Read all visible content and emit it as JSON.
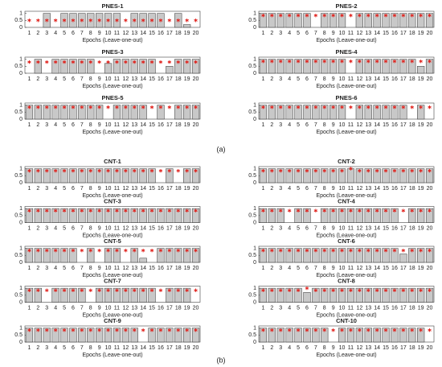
{
  "panel_labels": [
    "(a)",
    "(b)"
  ],
  "chart_data": [
    {
      "type": "bar",
      "title": "PNES-1",
      "xlabel": "Epochs (Leave-one-out)",
      "x": [
        1,
        2,
        3,
        4,
        5,
        6,
        7,
        8,
        9,
        10,
        11,
        12,
        13,
        14,
        15,
        16,
        17,
        18,
        19,
        20
      ],
      "values": [
        0,
        0,
        1,
        0,
        1,
        1,
        1,
        1,
        1,
        1,
        1,
        0,
        1,
        1,
        1,
        1,
        0,
        1,
        0.2,
        0
      ],
      "markers": [
        0.5,
        0.5,
        0.5,
        0.5,
        0.5,
        0.5,
        0.5,
        0.5,
        0.5,
        0.5,
        0.5,
        0.5,
        0.5,
        0.5,
        0.5,
        0.5,
        0.5,
        0.5,
        0.5,
        0.5
      ],
      "ylim": [
        0,
        1.15
      ],
      "yticks": [
        0,
        0.5,
        1
      ]
    },
    {
      "type": "bar",
      "title": "PNES-2",
      "xlabel": "Epochs (Leave-one-out)",
      "x": [
        1,
        2,
        3,
        4,
        5,
        6,
        7,
        8,
        9,
        10,
        11,
        12,
        13,
        14,
        15,
        16,
        17,
        18,
        19,
        20
      ],
      "values": [
        1,
        1,
        1,
        1,
        1,
        1,
        0,
        1,
        1,
        1,
        0,
        1,
        1,
        1,
        1,
        1,
        1,
        1,
        1,
        1
      ],
      "markers": [
        0.85,
        0.85,
        0.85,
        0.85,
        0.85,
        0.85,
        0.85,
        0.85,
        0.85,
        0.85,
        0.85,
        0.85,
        0.85,
        0.85,
        0.85,
        0.85,
        0.85,
        0.85,
        0.85,
        0.85
      ],
      "ylim": [
        0,
        1.15
      ],
      "yticks": [
        0,
        0.5,
        1
      ]
    },
    {
      "type": "bar",
      "title": "PNES-3",
      "xlabel": "Epochs (Leave-one-out)",
      "x": [
        1,
        2,
        3,
        4,
        5,
        6,
        7,
        8,
        9,
        10,
        11,
        12,
        13,
        14,
        15,
        16,
        17,
        18,
        19,
        20
      ],
      "values": [
        0,
        1,
        0,
        1,
        1,
        1,
        1,
        1,
        0,
        0.7,
        1,
        1,
        1,
        1,
        1,
        0,
        0.5,
        1,
        1,
        1
      ],
      "markers": [
        0.8,
        0.8,
        0.8,
        0.8,
        0.8,
        0.8,
        0.8,
        0.8,
        0.8,
        0.8,
        0.8,
        0.8,
        0.8,
        0.8,
        0.8,
        0.8,
        0.8,
        0.8,
        0.8,
        0.8
      ],
      "ylim": [
        0,
        1.15
      ],
      "yticks": [
        0,
        0.5,
        1
      ]
    },
    {
      "type": "bar",
      "title": "PNES-4",
      "xlabel": "Epochs (Leave-one-out)",
      "x": [
        1,
        2,
        3,
        4,
        5,
        6,
        7,
        8,
        9,
        10,
        11,
        12,
        13,
        14,
        15,
        16,
        17,
        18,
        19,
        20
      ],
      "values": [
        1,
        1,
        1,
        1,
        1,
        1,
        1,
        1,
        1,
        1,
        0,
        1,
        1,
        1,
        1,
        1,
        1,
        1,
        0.5,
        1
      ],
      "markers": [
        0.85,
        0.85,
        0.85,
        0.85,
        0.85,
        0.85,
        0.85,
        0.85,
        0.85,
        0.85,
        0.85,
        0.85,
        0.85,
        0.85,
        0.85,
        0.85,
        0.85,
        0.85,
        0.85,
        0.85
      ],
      "ylim": [
        0,
        1.15
      ],
      "yticks": [
        0,
        0.5,
        1
      ]
    },
    {
      "type": "bar",
      "title": "PNES-5",
      "xlabel": "Epochs (Leave-one-out)",
      "x": [
        1,
        2,
        3,
        4,
        5,
        6,
        7,
        8,
        9,
        10,
        11,
        12,
        13,
        14,
        15,
        16,
        17,
        18,
        19,
        20
      ],
      "values": [
        1,
        1,
        1,
        1,
        1,
        1,
        1,
        1,
        1,
        0,
        1,
        1,
        1,
        1,
        0,
        1,
        0,
        1,
        1,
        1
      ],
      "markers": [
        0.85,
        0.85,
        0.85,
        0.85,
        0.85,
        0.85,
        0.85,
        0.85,
        0.85,
        0.85,
        0.85,
        0.85,
        0.85,
        0.85,
        0.85,
        0.85,
        0.85,
        0.85,
        0.85,
        0.85
      ],
      "ylim": [
        0,
        1.15
      ],
      "yticks": [
        0,
        0.5,
        1
      ]
    },
    {
      "type": "bar",
      "title": "PNES-6",
      "xlabel": "Epochs (Leave-one-out)",
      "x": [
        1,
        2,
        3,
        4,
        5,
        6,
        7,
        8,
        9,
        10,
        11,
        12,
        13,
        14,
        15,
        16,
        17,
        18,
        19,
        20
      ],
      "values": [
        1,
        1,
        1,
        1,
        1,
        1,
        1,
        1,
        1,
        1,
        0,
        1,
        1,
        1,
        1,
        1,
        1,
        0,
        1,
        0
      ],
      "markers": [
        0.85,
        0.85,
        0.85,
        0.85,
        0.85,
        0.85,
        0.85,
        0.85,
        0.85,
        0.85,
        0.85,
        0.85,
        0.85,
        0.85,
        0.85,
        0.85,
        0.85,
        0.85,
        0.85,
        0.85
      ],
      "ylim": [
        0,
        1.15
      ],
      "yticks": [
        0,
        0.5,
        1
      ]
    },
    {
      "type": "bar",
      "title": "CNT-1",
      "xlabel": "Epochs (Leave-one-out)",
      "x": [
        1,
        2,
        3,
        4,
        5,
        6,
        7,
        8,
        9,
        10,
        11,
        12,
        13,
        14,
        15,
        16,
        17,
        18,
        19,
        20
      ],
      "values": [
        1,
        1,
        1,
        1,
        1,
        1,
        1,
        1,
        1,
        1,
        1,
        1,
        1,
        1,
        1,
        0,
        1,
        0,
        1,
        1
      ],
      "markers": [
        0.85,
        0.85,
        0.85,
        0.85,
        0.85,
        0.85,
        0.85,
        0.85,
        0.85,
        0.85,
        0.85,
        0.85,
        0.85,
        0.85,
        0.85,
        0.85,
        0.85,
        0.85,
        0.85,
        0.85
      ],
      "ylim": [
        0,
        1.15
      ],
      "yticks": [
        0,
        0.5,
        1
      ]
    },
    {
      "type": "bar",
      "title": "CNT-2",
      "xlabel": "Epochs (Leave-one-out)",
      "x": [
        1,
        2,
        3,
        4,
        5,
        6,
        7,
        8,
        9,
        10,
        11,
        12,
        13,
        14,
        15,
        16,
        17,
        18,
        19,
        20
      ],
      "values": [
        1,
        1,
        1,
        1,
        1,
        1,
        1,
        1,
        1,
        1,
        1,
        1,
        1,
        1,
        1,
        1,
        1,
        1,
        1,
        1
      ],
      "markers": [
        0.85,
        0.85,
        0.85,
        0.85,
        0.85,
        0.85,
        0.85,
        0.85,
        0.85,
        0.85,
        1,
        0.85,
        0.85,
        0.85,
        0.85,
        0.85,
        0.85,
        0.85,
        0.85,
        0.85
      ],
      "ylim": [
        0,
        1.15
      ],
      "yticks": [
        0,
        0.5,
        1
      ]
    },
    {
      "type": "bar",
      "title": "CNT-3",
      "xlabel": "Epochs (Leave-one-out)",
      "x": [
        1,
        2,
        3,
        4,
        5,
        6,
        7,
        8,
        9,
        10,
        11,
        12,
        13,
        14,
        15,
        16,
        17,
        18,
        19,
        20
      ],
      "values": [
        1,
        1,
        1,
        1,
        1,
        1,
        1,
        1,
        1,
        1,
        1,
        1,
        1,
        1,
        1,
        1,
        1,
        1,
        1,
        1
      ],
      "markers": [
        0.85,
        0.85,
        0.85,
        0.85,
        0.85,
        0.85,
        0.85,
        0.85,
        0.85,
        0.85,
        0.85,
        0.85,
        0.85,
        0.85,
        0.85,
        0.85,
        0.85,
        0.85,
        0.85,
        0.85
      ],
      "ylim": [
        0,
        1.15
      ],
      "yticks": [
        0,
        0.5,
        1
      ]
    },
    {
      "type": "bar",
      "title": "CNT-4",
      "xlabel": "Epochs (Leave-one-out)",
      "x": [
        1,
        2,
        3,
        4,
        5,
        6,
        7,
        8,
        9,
        10,
        11,
        12,
        13,
        14,
        15,
        16,
        17,
        18,
        19,
        20
      ],
      "values": [
        1,
        1,
        1,
        0,
        1,
        1,
        0,
        1,
        1,
        1,
        1,
        1,
        1,
        1,
        1,
        1,
        0,
        1,
        1,
        1
      ],
      "markers": [
        0.85,
        0.85,
        0.85,
        0.85,
        0.85,
        0.85,
        0.85,
        0.85,
        0.85,
        0.85,
        0.85,
        0.85,
        0.85,
        0.85,
        0.85,
        0.85,
        0.85,
        0.85,
        0.85,
        0.85
      ],
      "ylim": [
        0,
        1.15
      ],
      "yticks": [
        0,
        0.5,
        1
      ]
    },
    {
      "type": "bar",
      "title": "CNT-5",
      "xlabel": "Epochs (Leave-one-out)",
      "x": [
        1,
        2,
        3,
        4,
        5,
        6,
        7,
        8,
        9,
        10,
        11,
        12,
        13,
        14,
        15,
        16,
        17,
        18,
        19,
        20
      ],
      "values": [
        1,
        1,
        1,
        1,
        1,
        1,
        0,
        1,
        0,
        1,
        1,
        0,
        1,
        0.3,
        0,
        1,
        1,
        1,
        1,
        1
      ],
      "markers": [
        0.85,
        0.85,
        0.85,
        0.85,
        0.85,
        0.85,
        0.85,
        0.85,
        0.85,
        0.85,
        0.85,
        0.85,
        0.85,
        0.85,
        0.85,
        0.85,
        0.85,
        0.85,
        0.85,
        0.85
      ],
      "ylim": [
        0,
        1.15
      ],
      "yticks": [
        0,
        0.5,
        1
      ]
    },
    {
      "type": "bar",
      "title": "CNT-6",
      "xlabel": "Epochs (Leave-one-out)",
      "x": [
        1,
        2,
        3,
        4,
        5,
        6,
        7,
        8,
        9,
        10,
        11,
        12,
        13,
        14,
        15,
        16,
        17,
        18,
        19,
        20
      ],
      "values": [
        1,
        1,
        1,
        1,
        1,
        1,
        1,
        1,
        1,
        1,
        1,
        1,
        1,
        1,
        1,
        1,
        0.6,
        1,
        1,
        1
      ],
      "markers": [
        0.85,
        0.85,
        0.85,
        0.85,
        0.85,
        0.85,
        0.85,
        0.85,
        0.85,
        0.85,
        0.85,
        0.85,
        0.85,
        0.85,
        0.85,
        0.85,
        0.85,
        0.85,
        0.85,
        0.85
      ],
      "ylim": [
        0,
        1.15
      ],
      "yticks": [
        0,
        0.5,
        1
      ]
    },
    {
      "type": "bar",
      "title": "CNT-7",
      "xlabel": "Epochs (Leave-one-out)",
      "x": [
        1,
        2,
        3,
        4,
        5,
        6,
        7,
        8,
        9,
        10,
        11,
        12,
        13,
        14,
        15,
        16,
        17,
        18,
        19,
        20
      ],
      "values": [
        1,
        1,
        0,
        1,
        1,
        1,
        1,
        0,
        1,
        1,
        1,
        1,
        1,
        1,
        1,
        0,
        1,
        1,
        1,
        0
      ],
      "markers": [
        0.85,
        0.85,
        0.85,
        0.85,
        0.85,
        0.85,
        0.85,
        0.85,
        0.85,
        0.85,
        0.85,
        0.85,
        0.85,
        0.85,
        0.85,
        0.85,
        0.85,
        0.85,
        0.85,
        0.85
      ],
      "ylim": [
        0,
        1.15
      ],
      "yticks": [
        0,
        0.5,
        1
      ]
    },
    {
      "type": "bar",
      "title": "CNT-8",
      "xlabel": "Epochs (Leave-one-out)",
      "x": [
        1,
        2,
        3,
        4,
        5,
        6,
        7,
        8,
        9,
        10,
        11,
        12,
        13,
        14,
        15,
        16,
        17,
        18,
        19,
        20
      ],
      "values": [
        1,
        1,
        1,
        1,
        1,
        0.7,
        1,
        1,
        1,
        1,
        1,
        1,
        1,
        1,
        1,
        1,
        1,
        1,
        1,
        1
      ],
      "markers": [
        0.85,
        0.85,
        0.85,
        0.85,
        0.85,
        1,
        0.85,
        0.85,
        0.85,
        0.85,
        0.85,
        0.85,
        0.85,
        0.85,
        0.85,
        0.85,
        0.85,
        0.85,
        0.85,
        0.85
      ],
      "ylim": [
        0,
        1.15
      ],
      "yticks": [
        0,
        0.5,
        1
      ]
    },
    {
      "type": "bar",
      "title": "CNT-9",
      "xlabel": "Epochs (Leave-one-out)",
      "x": [
        1,
        2,
        3,
        4,
        5,
        6,
        7,
        8,
        9,
        10,
        11,
        12,
        13,
        14,
        15,
        16,
        17,
        18,
        19,
        20
      ],
      "values": [
        1,
        1,
        1,
        1,
        1,
        1,
        1,
        1,
        1,
        1,
        1,
        1,
        1,
        0,
        1,
        1,
        1,
        1,
        1,
        1
      ],
      "markers": [
        0.85,
        0.85,
        0.85,
        0.85,
        0.85,
        0.85,
        0.85,
        0.85,
        0.85,
        0.85,
        0.85,
        0.85,
        0.85,
        0.85,
        0.85,
        0.85,
        0.85,
        0.85,
        0.85,
        0.85
      ],
      "ylim": [
        0,
        1.15
      ],
      "yticks": [
        0,
        0.5,
        1
      ]
    },
    {
      "type": "bar",
      "title": "CNT-10",
      "xlabel": "Epochs (Leave-one-out)",
      "x": [
        1,
        2,
        3,
        4,
        5,
        6,
        7,
        8,
        9,
        10,
        11,
        12,
        13,
        14,
        15,
        16,
        17,
        18,
        19,
        20
      ],
      "values": [
        1,
        1,
        1,
        1,
        1,
        1,
        1,
        1,
        0,
        1,
        1,
        1,
        1,
        1,
        1,
        1,
        1,
        1,
        1,
        0
      ],
      "markers": [
        0.85,
        0.85,
        0.85,
        0.85,
        0.85,
        0.85,
        0.85,
        0.85,
        0.85,
        0.85,
        0.85,
        0.85,
        0.85,
        0.85,
        0.85,
        0.85,
        0.85,
        0.85,
        0.85,
        0.85
      ],
      "ylim": [
        0,
        1.15
      ],
      "yticks": [
        0,
        0.5,
        1
      ]
    }
  ]
}
